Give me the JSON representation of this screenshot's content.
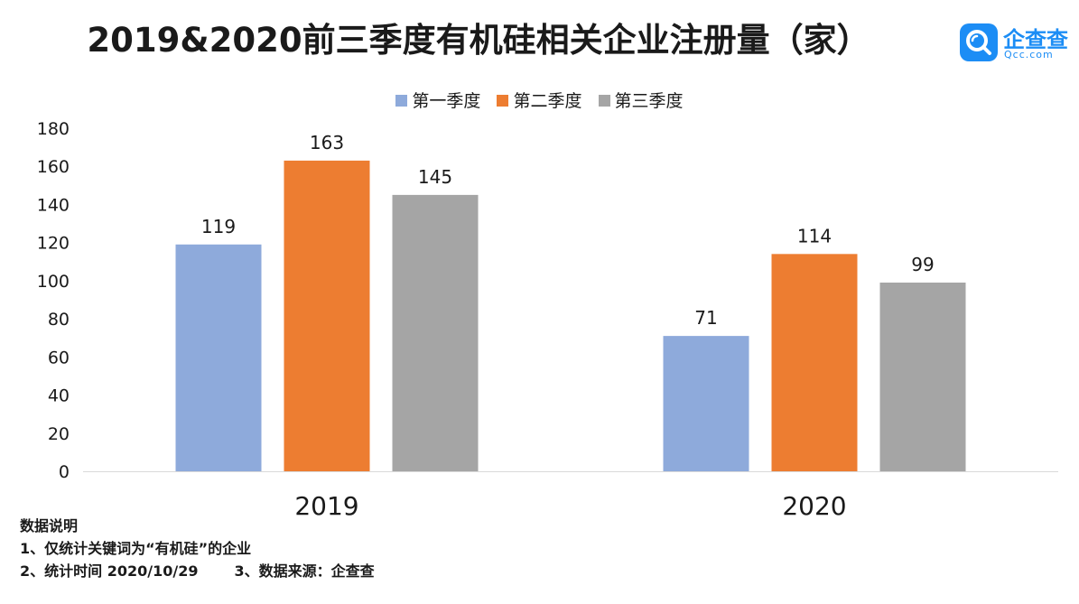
{
  "title": "2019&2020前三季度有机硅相关企业注册量（家）",
  "logo": {
    "name": "企查查",
    "sub": "Qcc.com",
    "icon": "qcc-logo-icon",
    "color": "#1c8df5"
  },
  "chart_data": {
    "type": "bar",
    "categories": [
      "2019",
      "2020"
    ],
    "series": [
      {
        "name": "第一季度",
        "values": [
          119,
          71
        ],
        "color": "#8eaadb"
      },
      {
        "name": "第二季度",
        "values": [
          163,
          114
        ],
        "color": "#ed7d31"
      },
      {
        "name": "第三季度",
        "values": [
          145,
          99
        ],
        "color": "#a5a5a5"
      }
    ],
    "ylim": [
      0,
      180
    ],
    "yticks": [
      0,
      20,
      40,
      60,
      80,
      100,
      120,
      140,
      160,
      180
    ],
    "grid": false,
    "legend": "top-center",
    "xlabel": "",
    "ylabel": ""
  },
  "notes": {
    "heading": "数据说明",
    "line1": "1、仅统计关键词为“有机硅”的企业",
    "line2a": "2、统计时间 2020/10/29",
    "line2b": "3、数据来源：企查查"
  }
}
